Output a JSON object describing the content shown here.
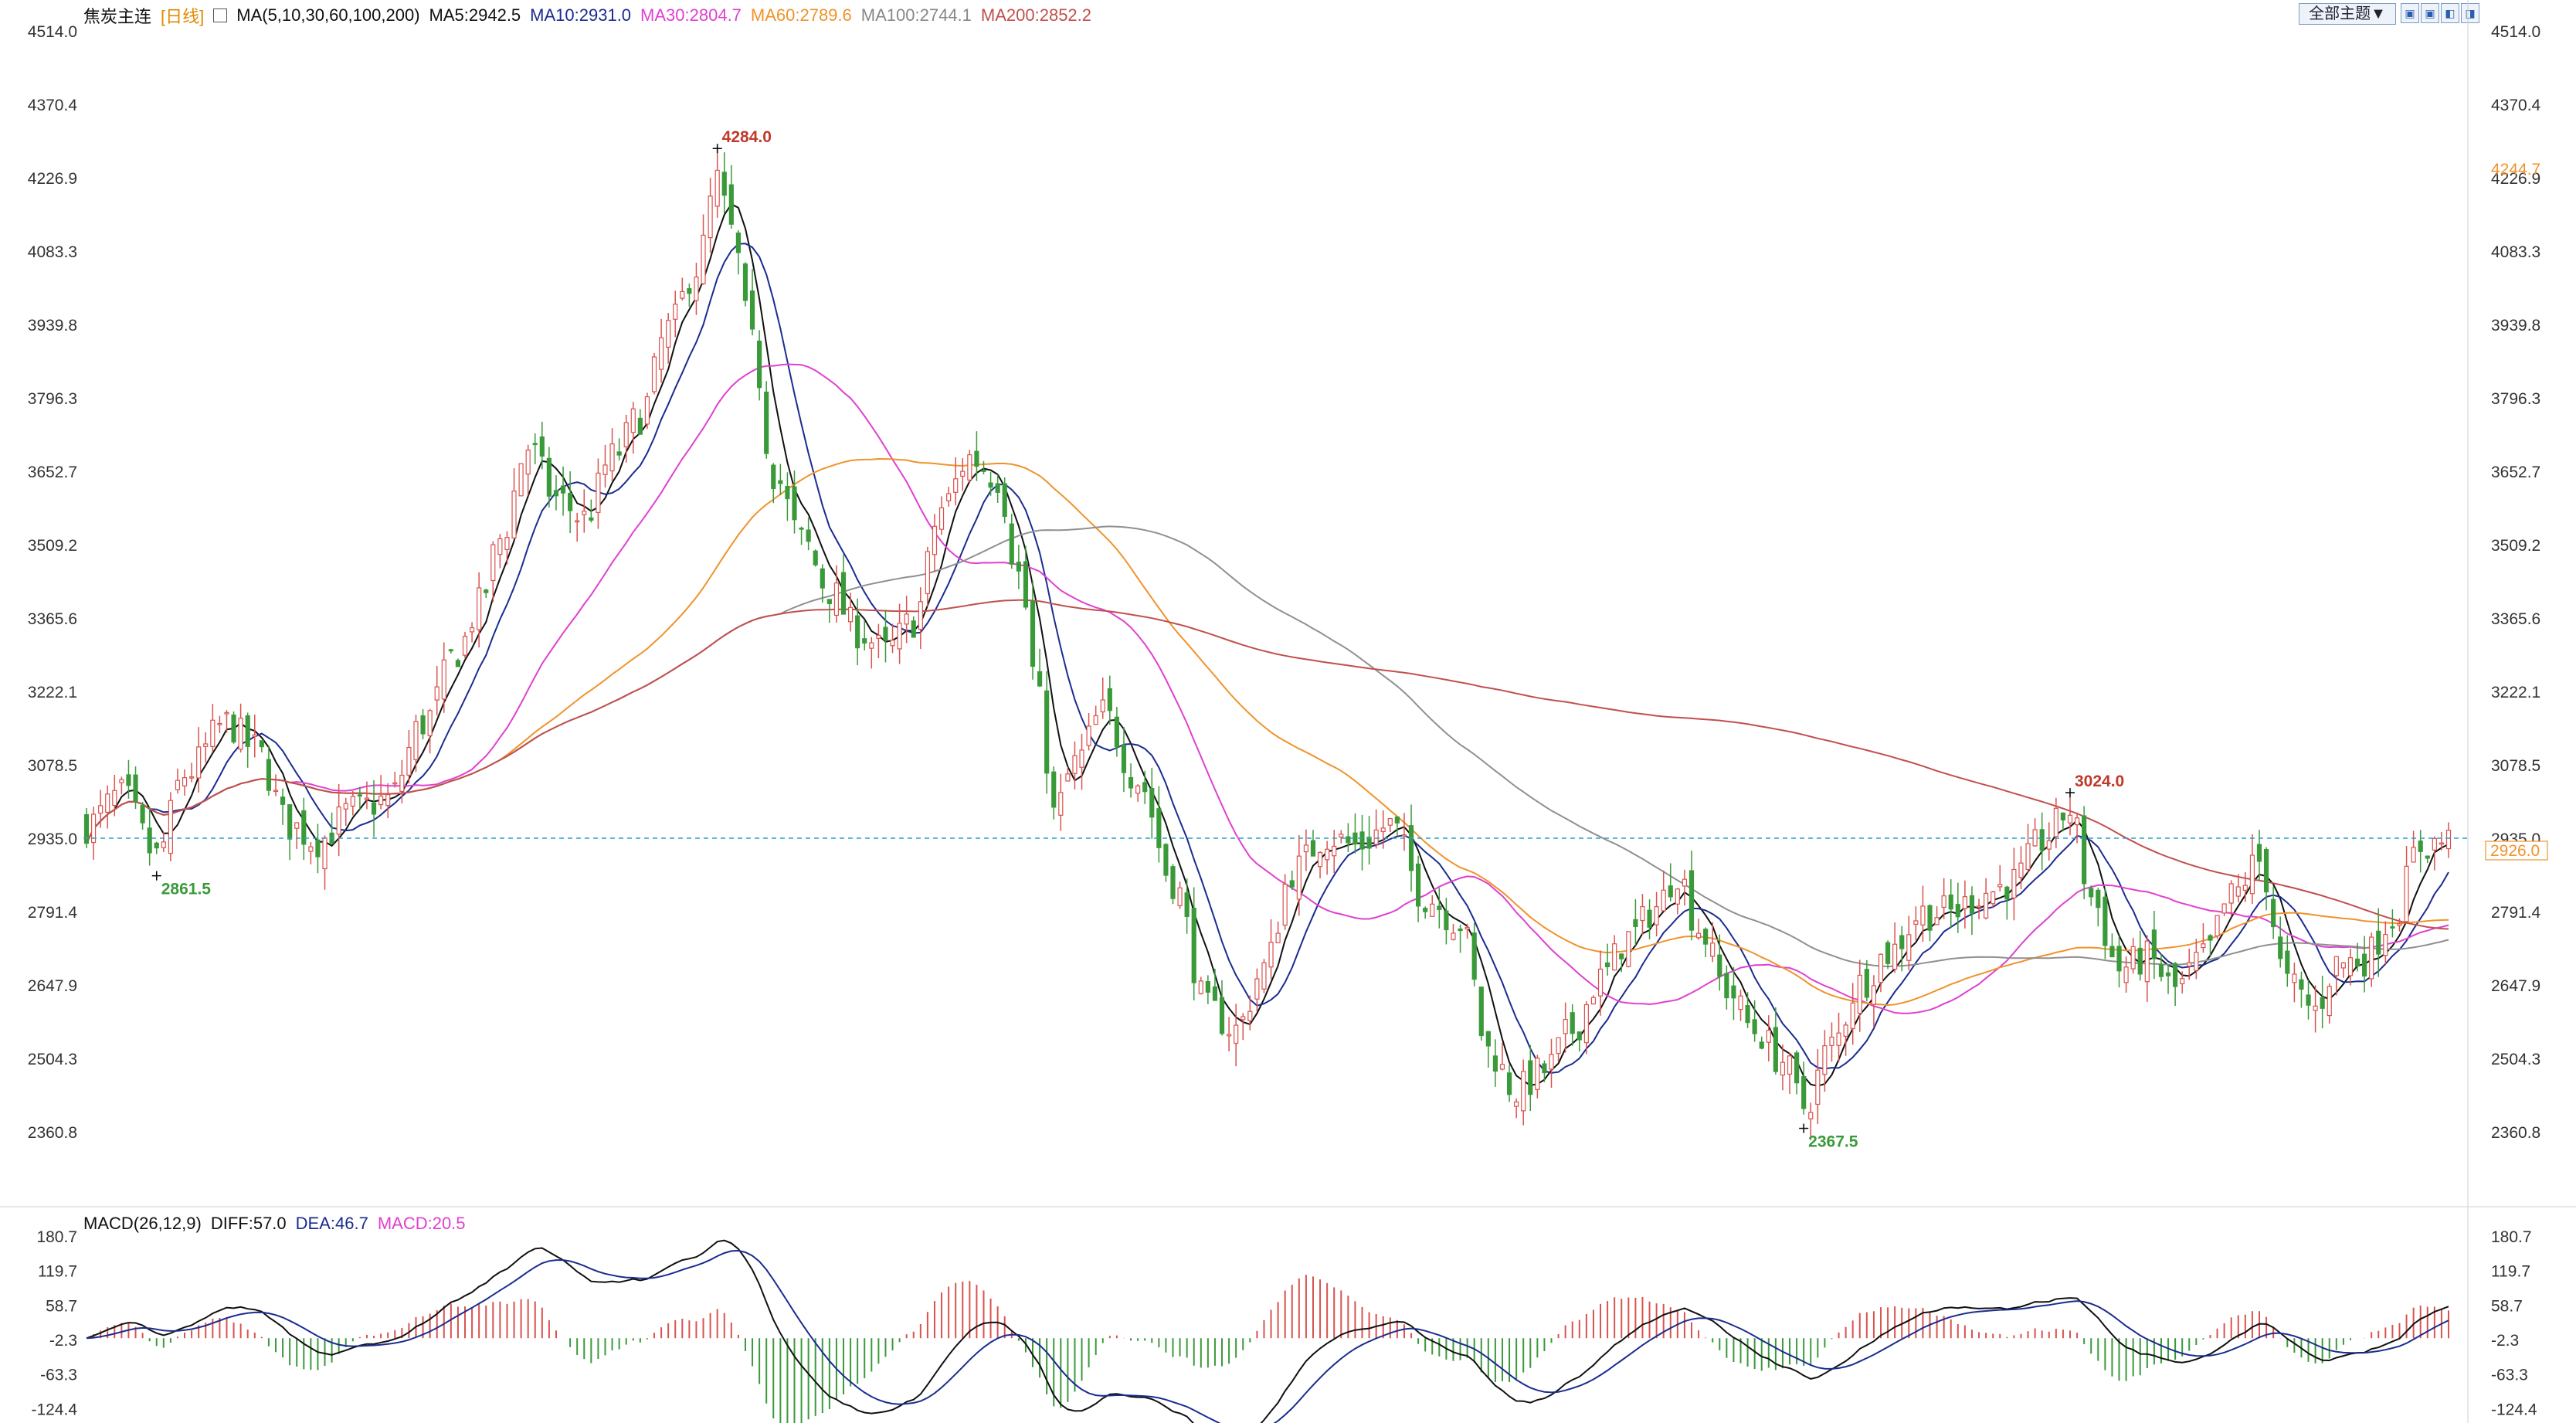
{
  "header": {
    "symbol": "焦炭主连",
    "period": "[日线]",
    "ma_label": "MA(5,10,30,60,100,200)",
    "ma5": "MA5:2942.5",
    "ma10": "MA10:2931.0",
    "ma30": "MA30:2804.7",
    "ma60": "MA60:2789.6",
    "ma100": "MA100:2744.1",
    "ma200": "MA200:2852.2"
  },
  "toolbar": {
    "theme_label": "全部主题▼",
    "icons": [
      "zoom-in-icon",
      "zoom-out-icon",
      "scroll-left-icon",
      "scroll-right-icon"
    ]
  },
  "macd_header": {
    "label": "MACD(26,12,9)",
    "diff": "DIFF:57.0",
    "dea": "DEA:46.7",
    "macd": "MACD:20.5"
  },
  "colors": {
    "up": "#d9534f",
    "down": "#3a9a3a",
    "ma5": "#111111",
    "ma10": "#1b2c8f",
    "ma30": "#e040d0",
    "ma60": "#f0932b",
    "ma100": "#909090",
    "ma200": "#c0504d",
    "dea": "#1b2c8f",
    "macd_label": "#e040d0",
    "current_price_line": "#2aa0c8"
  },
  "chart_data": {
    "type": "candlestick",
    "price_axis": {
      "ticks": [
        "4514.0",
        "4370.4",
        "4226.9",
        "4083.3",
        "3939.8",
        "3796.3",
        "3652.7",
        "3509.2",
        "3365.6",
        "3222.1",
        "3078.5",
        "2935.0",
        "2791.4",
        "2647.9",
        "2504.3",
        "2360.8"
      ],
      "range": [
        2360.8,
        4514.0
      ]
    },
    "right_markers": {
      "high_tag": "4244.7",
      "last_price": "2935.0",
      "last_tag": "2926.0"
    },
    "annotations": {
      "high": "4284.0",
      "low": "2367.5",
      "left_low": "2861.5",
      "right_high": "3024.0"
    },
    "anchors": [
      [
        0,
        2960
      ],
      [
        5,
        3020
      ],
      [
        10,
        2900
      ],
      [
        14,
        3060
      ],
      [
        20,
        3160
      ],
      [
        24,
        3110
      ],
      [
        29,
        2960
      ],
      [
        33,
        2930
      ],
      [
        38,
        2990
      ],
      [
        43,
        3010
      ],
      [
        48,
        3160
      ],
      [
        53,
        3300
      ],
      [
        56,
        3390
      ],
      [
        59,
        3520
      ],
      [
        63,
        3700
      ],
      [
        67,
        3600
      ],
      [
        71,
        3560
      ],
      [
        75,
        3680
      ],
      [
        79,
        3760
      ],
      [
        83,
        3930
      ],
      [
        87,
        4050
      ],
      [
        90,
        4220
      ],
      [
        92,
        4120
      ],
      [
        95,
        3900
      ],
      [
        98,
        3650
      ],
      [
        102,
        3520
      ],
      [
        106,
        3420
      ],
      [
        110,
        3340
      ],
      [
        114,
        3300
      ],
      [
        118,
        3360
      ],
      [
        122,
        3580
      ],
      [
        126,
        3680
      ],
      [
        130,
        3640
      ],
      [
        133,
        3450
      ],
      [
        136,
        3200
      ],
      [
        138,
        2980
      ],
      [
        141,
        3080
      ],
      [
        145,
        3180
      ],
      [
        150,
        3050
      ],
      [
        155,
        2850
      ],
      [
        160,
        2600
      ],
      [
        164,
        2560
      ],
      [
        168,
        2680
      ],
      [
        172,
        2870
      ],
      [
        177,
        2940
      ],
      [
        181,
        2920
      ],
      [
        186,
        2960
      ],
      [
        191,
        2820
      ],
      [
        196,
        2770
      ],
      [
        200,
        2520
      ],
      [
        204,
        2440
      ],
      [
        208,
        2480
      ],
      [
        212,
        2560
      ],
      [
        216,
        2660
      ],
      [
        220,
        2740
      ],
      [
        224,
        2800
      ],
      [
        227,
        2870
      ],
      [
        230,
        2760
      ],
      [
        234,
        2640
      ],
      [
        238,
        2560
      ],
      [
        242,
        2500
      ],
      [
        245,
        2410
      ],
      [
        249,
        2530
      ],
      [
        253,
        2650
      ],
      [
        257,
        2710
      ],
      [
        262,
        2790
      ],
      [
        266,
        2790
      ],
      [
        271,
        2830
      ],
      [
        275,
        2850
      ],
      [
        279,
        2930
      ],
      [
        283,
        2990
      ],
      [
        286,
        2820
      ],
      [
        290,
        2680
      ],
      [
        294,
        2700
      ],
      [
        298,
        2640
      ],
      [
        302,
        2700
      ],
      [
        306,
        2820
      ],
      [
        310,
        2890
      ],
      [
        314,
        2650
      ],
      [
        318,
        2600
      ],
      [
        321,
        2690
      ],
      [
        325,
        2700
      ],
      [
        329,
        2780
      ],
      [
        333,
        2920
      ],
      [
        337,
        2930
      ]
    ],
    "n_candles": 338,
    "macd": {
      "axis_ticks": [
        "180.7",
        "119.7",
        "58.7",
        "-2.3",
        "-63.3",
        "-124.4"
      ],
      "range": [
        -150,
        180.7
      ]
    }
  }
}
